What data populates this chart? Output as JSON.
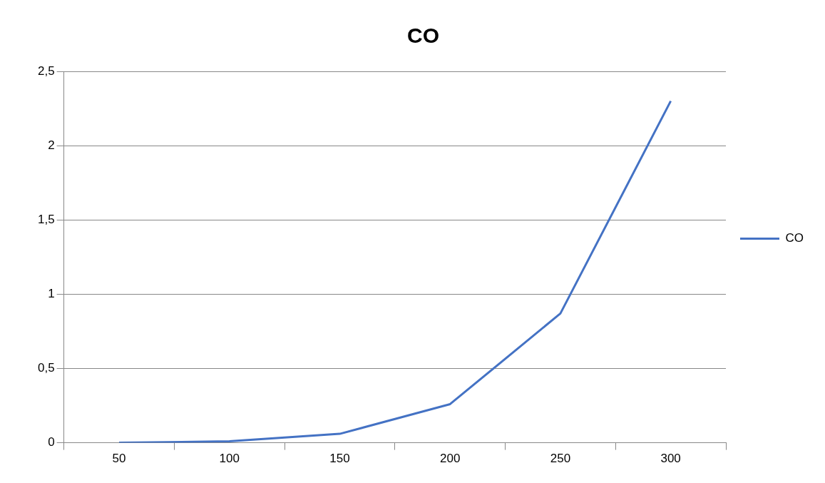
{
  "chart_data": {
    "type": "line",
    "title": "CO",
    "categories": [
      "50",
      "100",
      "150",
      "200",
      "250",
      "300"
    ],
    "series": [
      {
        "name": "CO",
        "color": "#4472c4",
        "values": [
          0,
          0.01,
          0.06,
          0.26,
          0.87,
          2.3
        ]
      }
    ],
    "ylim": [
      0,
      2.5
    ],
    "yticks": [
      0,
      {
        "value": 0.5,
        "label": "0,5"
      },
      1,
      {
        "value": 1.5,
        "label": "1,5"
      },
      2,
      {
        "value": 2.5,
        "label": "2,5"
      }
    ],
    "grid": "y",
    "legend": "right",
    "marker": "none"
  }
}
